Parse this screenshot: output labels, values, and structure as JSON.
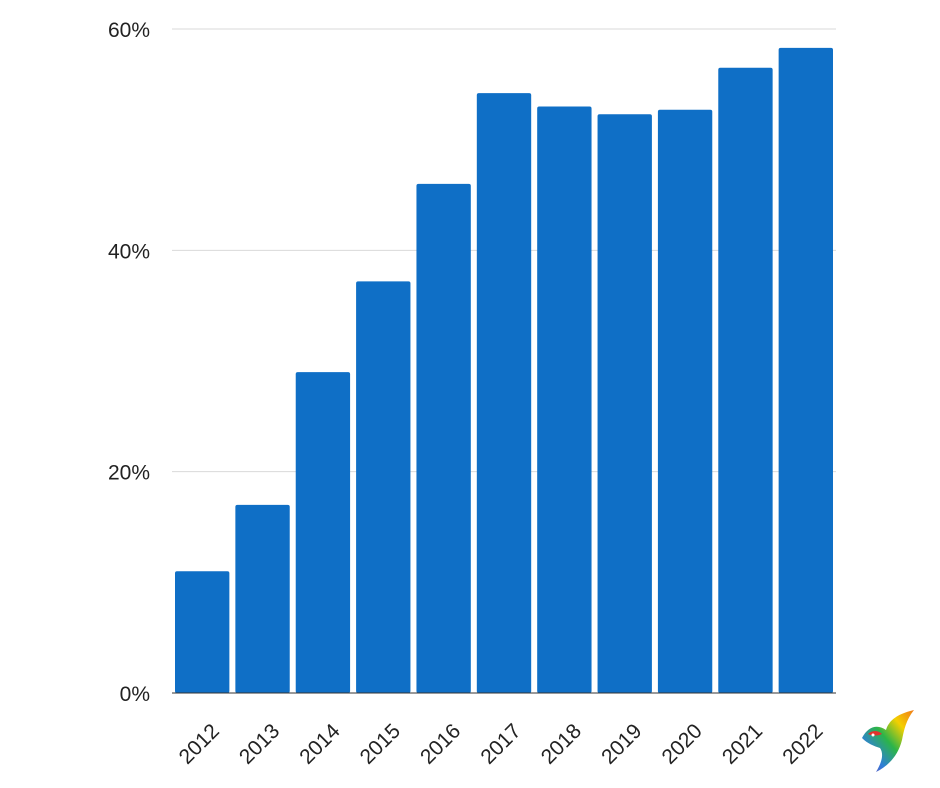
{
  "chart_data": {
    "type": "bar",
    "title": "",
    "xlabel": "",
    "ylabel": "",
    "categories": [
      "2012",
      "2013",
      "2014",
      "2015",
      "2016",
      "2017",
      "2018",
      "2019",
      "2020",
      "2021",
      "2022"
    ],
    "values": [
      11,
      17,
      29,
      37.2,
      46,
      54.2,
      53,
      52.3,
      52.7,
      56.5,
      58.3
    ],
    "value_unit": "%",
    "ylim": [
      0,
      60
    ],
    "yticks": [
      0,
      20,
      40,
      60
    ],
    "ytick_labels": [
      "0%",
      "20%",
      "40%",
      "60%"
    ],
    "grid": true,
    "bar_color": "#0f6fc6",
    "legend": "none"
  },
  "logo": {
    "icon": "rainbow-bird-logo-icon"
  }
}
